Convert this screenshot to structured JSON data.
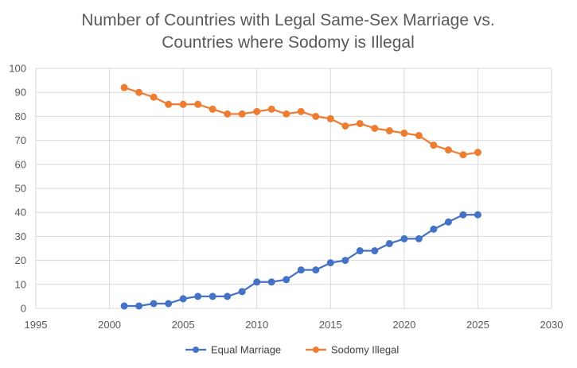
{
  "chart_data": {
    "type": "line",
    "title_lines": [
      "Number of Countries with Legal Same-Sex Marriage vs.",
      "Countries where Sodomy is Illegal"
    ],
    "xlim": [
      1995,
      2030
    ],
    "ylim": [
      0,
      100
    ],
    "x_ticks": [
      1995,
      2000,
      2005,
      2010,
      2015,
      2020,
      2025,
      2030
    ],
    "y_ticks": [
      0,
      10,
      20,
      30,
      40,
      50,
      60,
      70,
      80,
      90,
      100
    ],
    "grid": true,
    "legend_position": "bottom",
    "x": [
      2001,
      2002,
      2003,
      2004,
      2005,
      2006,
      2007,
      2008,
      2009,
      2010,
      2011,
      2012,
      2013,
      2014,
      2015,
      2016,
      2017,
      2018,
      2019,
      2020,
      2021,
      2022,
      2023,
      2024,
      2025
    ],
    "series": [
      {
        "name": "Equal Marriage",
        "color": "#4472c4",
        "values": [
          1,
          1,
          2,
          2,
          4,
          5,
          5,
          5,
          7,
          11,
          11,
          12,
          16,
          16,
          19,
          20,
          24,
          24,
          27,
          29,
          29,
          33,
          36,
          39,
          39
        ]
      },
      {
        "name": "Sodomy Illegal",
        "color": "#ed7d31",
        "values": [
          92,
          90,
          88,
          85,
          85,
          85,
          83,
          81,
          81,
          82,
          83,
          81,
          82,
          80,
          79,
          76,
          77,
          75,
          74,
          73,
          72,
          68,
          66,
          64,
          65
        ]
      }
    ]
  }
}
